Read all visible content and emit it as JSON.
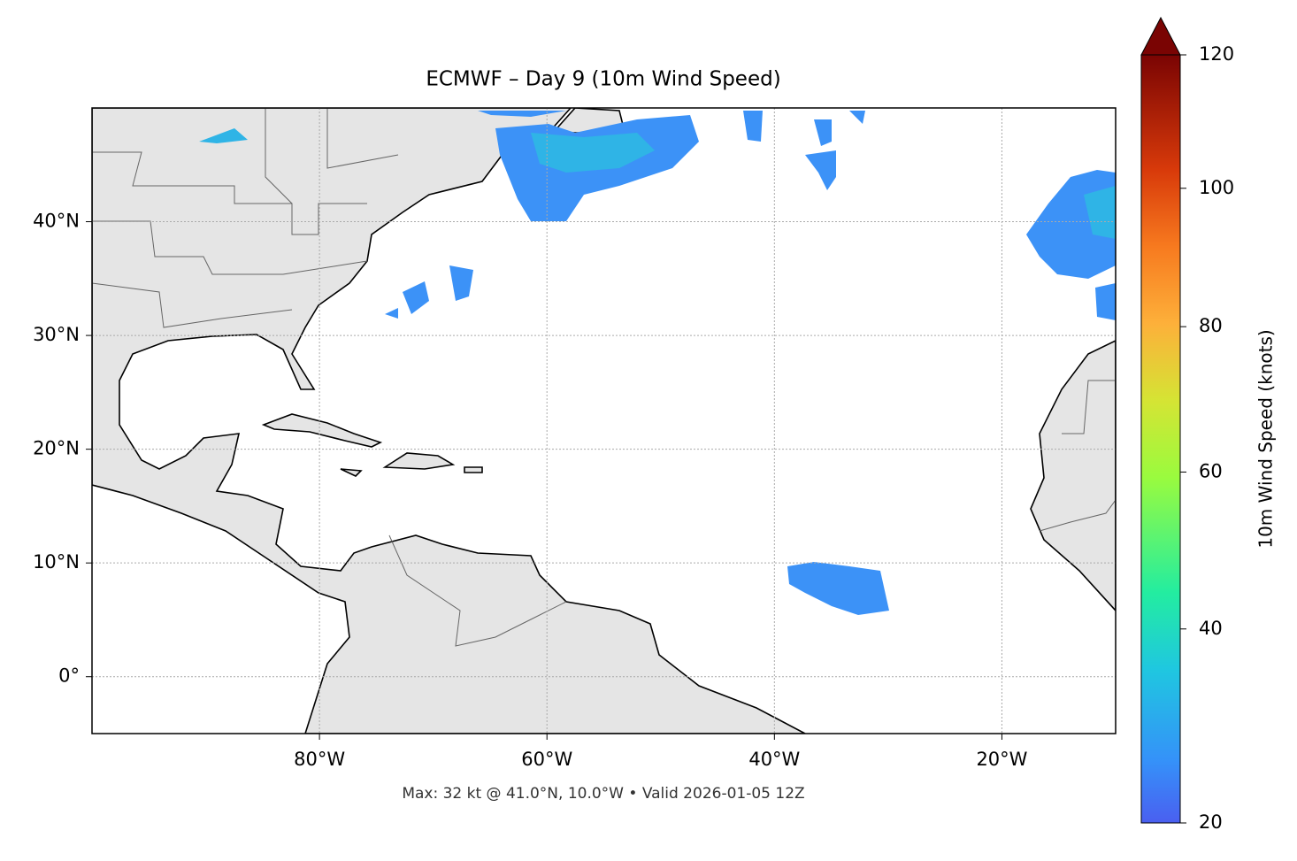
{
  "chart_data": {
    "type": "map",
    "title": "ECMWF – Day 9 (10m Wind Speed)",
    "xlim": [
      -100,
      -10
    ],
    "ylim": [
      -5,
      50
    ],
    "xticks": [
      {
        "value": -80,
        "label": "80°W"
      },
      {
        "value": -60,
        "label": "60°W"
      },
      {
        "value": -40,
        "label": "40°W"
      },
      {
        "value": -20,
        "label": "20°W"
      }
    ],
    "yticks": [
      {
        "value": 0,
        "label": "0°"
      },
      {
        "value": 10,
        "label": "10°N"
      },
      {
        "value": 20,
        "label": "20°N"
      },
      {
        "value": 30,
        "label": "30°N"
      },
      {
        "value": 40,
        "label": "40°N"
      }
    ],
    "grid": true,
    "colorbar": {
      "label": "10m Wind Speed (knots)",
      "lim": [
        20,
        120
      ],
      "ticks": [
        20,
        40,
        60,
        80,
        100,
        120
      ]
    },
    "footer": "Max: 32 kt @ 41.0°N, 10.0°W • Valid 2026-01-05 12Z"
  }
}
